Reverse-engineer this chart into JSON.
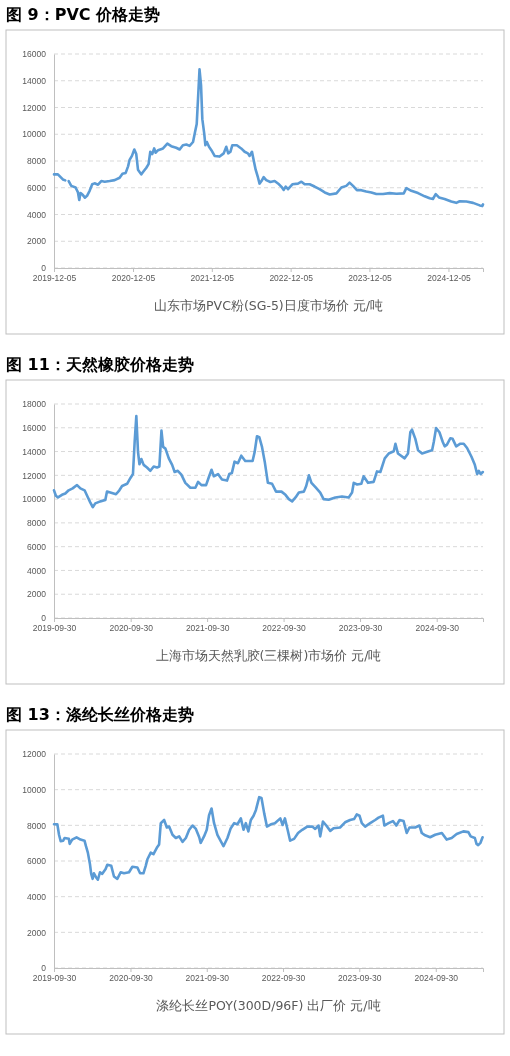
{
  "chart_data": [
    {
      "type": "line",
      "title": "图 9：PVC 价格走势",
      "xlabel": "山东市场PVC粉(SG-5)日度市场价 元/吨",
      "grid": "y",
      "xlim": [
        "2019-12-05",
        "2025-05-14"
      ],
      "ylim": [
        0,
        16000
      ],
      "yticks": [
        0,
        2000,
        4000,
        6000,
        8000,
        10000,
        12000,
        14000,
        16000
      ],
      "xticks": [
        "2019-12-05",
        "2020-12-05",
        "2021-12-05",
        "2022-12-05",
        "2023-12-05",
        "2024-12-05"
      ],
      "x": [
        "2019-12-05",
        "2019-12-23",
        "2020-01-15",
        "2020-01-26",
        "2020-02-03",
        "2020-02-11",
        "2020-02-23",
        "2020-03-14",
        "2020-03-25",
        "2020-03-31",
        "2020-04-06",
        "2020-04-17",
        "2020-04-26",
        "2020-05-06",
        "2020-05-18",
        "2020-05-30",
        "2020-06-10",
        "2020-06-26",
        "2020-07-11",
        "2020-07-27",
        "2020-08-19",
        "2020-09-11",
        "2020-10-04",
        "2020-10-17",
        "2020-11-01",
        "2020-11-12",
        "2020-11-19",
        "2020-11-30",
        "2020-12-11",
        "2020-12-20",
        "2020-12-28",
        "2021-01-12",
        "2021-01-23",
        "2021-02-04",
        "2021-02-15",
        "2021-02-23",
        "2021-03-04",
        "2021-03-13",
        "2021-03-20",
        "2021-03-31",
        "2021-04-23",
        "2021-05-13",
        "2021-05-31",
        "2021-06-23",
        "2021-07-09",
        "2021-07-24",
        "2021-08-09",
        "2021-08-24",
        "2021-09-09",
        "2021-09-18",
        "2021-09-26",
        "2021-10-03",
        "2021-10-09",
        "2021-10-16",
        "2021-10-22",
        "2021-10-31",
        "2021-11-05",
        "2021-11-12",
        "2021-11-22",
        "2021-12-03",
        "2021-12-18",
        "2022-01-10",
        "2022-01-29",
        "2022-02-10",
        "2022-02-19",
        "2022-03-01",
        "2022-03-10",
        "2022-03-31",
        "2022-04-20",
        "2022-05-06",
        "2022-05-21",
        "2022-05-29",
        "2022-06-09",
        "2022-06-18",
        "2022-06-26",
        "2022-07-07",
        "2022-07-14",
        "2022-07-23",
        "2022-08-02",
        "2022-08-14",
        "2022-09-02",
        "2022-09-22",
        "2022-10-12",
        "2022-10-26",
        "2022-11-03",
        "2022-11-12",
        "2022-11-23",
        "2022-12-13",
        "2023-01-08",
        "2023-01-24",
        "2023-02-08",
        "2023-03-03",
        "2023-03-26",
        "2023-04-18",
        "2023-05-12",
        "2023-06-04",
        "2023-07-05",
        "2023-07-28",
        "2023-08-20",
        "2023-09-04",
        "2023-09-20",
        "2023-10-08",
        "2023-10-28",
        "2023-11-20",
        "2023-12-14",
        "2024-01-06",
        "2024-02-06",
        "2024-03-08",
        "2024-04-08",
        "2024-05-12",
        "2024-05-24",
        "2024-06-16",
        "2024-07-17",
        "2024-08-17",
        "2024-09-09",
        "2024-09-24",
        "2024-10-07",
        "2024-10-22",
        "2024-11-17",
        "2024-12-18",
        "2025-01-10",
        "2025-01-26",
        "2025-02-26",
        "2025-03-29",
        "2025-04-29",
        "2025-05-11",
        "2025-05-14"
      ],
      "series": [
        {
          "color": "#5b9bd5",
          "values": [
            7000,
            7000,
            6620,
            6550,
            null,
            6500,
            6140,
            6020,
            5650,
            5090,
            5600,
            5450,
            5260,
            5400,
            5770,
            6260,
            6330,
            6230,
            6500,
            6450,
            6500,
            6570,
            6750,
            7040,
            7110,
            7600,
            8080,
            8380,
            8860,
            8520,
            7350,
            7000,
            7230,
            7480,
            7770,
            8690,
            8520,
            8940,
            8620,
            8810,
            8940,
            9300,
            9110,
            8990,
            8860,
            9180,
            9230,
            9130,
            9420,
            10150,
            10760,
            12950,
            14850,
            13680,
            11130,
            10030,
            9180,
            9420,
            9060,
            8810,
            8380,
            8330,
            8570,
            9060,
            8570,
            8690,
            9180,
            9180,
            8940,
            8690,
            8570,
            8380,
            8690,
            7960,
            7350,
            6750,
            6310,
            6500,
            6790,
            6570,
            6430,
            6500,
            6260,
            6020,
            5840,
            6090,
            5890,
            6260,
            6310,
            6450,
            6260,
            6260,
            6090,
            5890,
            5650,
            5500,
            5580,
            6020,
            6140,
            6380,
            6140,
            5820,
            5820,
            5720,
            5650,
            5530,
            5530,
            5600,
            5550,
            5580,
            5970,
            5770,
            5600,
            5360,
            5210,
            5160,
            5530,
            5280,
            5160,
            4970,
            4870,
            4990,
            4970,
            4870,
            4680,
            4630,
            4750
          ]
        }
      ]
    },
    {
      "type": "line",
      "title": "图 11：天然橡胶价格走势",
      "xlabel": "上海市场天然乳胶(三棵树)市场价 元/吨",
      "grid": "y",
      "xlim": [
        "2019-09-30",
        "2025-05-09"
      ],
      "ylim": [
        0,
        18000
      ],
      "yticks": [
        0,
        2000,
        4000,
        6000,
        8000,
        10000,
        12000,
        14000,
        16000,
        18000
      ],
      "xticks": [
        "2019-09-30",
        "2020-09-30",
        "2021-09-30",
        "2022-09-30",
        "2023-09-30",
        "2024-09-30"
      ],
      "x": [
        "2019-09-30",
        "2019-10-09",
        "2019-10-19",
        "2019-11-07",
        "2019-11-23",
        "2019-12-09",
        "2019-12-28",
        "2020-01-18",
        "2020-02-03",
        "2020-02-23",
        "2020-03-10",
        "2020-03-21",
        "2020-04-02",
        "2020-04-14",
        "2020-05-08",
        "2020-06-01",
        "2020-06-09",
        "2020-06-25",
        "2020-07-22",
        "2020-08-07",
        "2020-08-20",
        "2020-09-13",
        "2020-09-29",
        "2020-10-11",
        "2020-10-19",
        "2020-10-27",
        "2020-11-04",
        "2020-11-11",
        "2020-11-20",
        "2020-12-01",
        "2020-12-17",
        "2021-01-02",
        "2021-01-18",
        "2021-02-03",
        "2021-02-14",
        "2021-02-24",
        "2021-03-04",
        "2021-03-15",
        "2021-03-31",
        "2021-04-16",
        "2021-04-28",
        "2021-05-13",
        "2021-05-30",
        "2021-06-18",
        "2021-07-12",
        "2021-08-05",
        "2021-08-18",
        "2021-09-03",
        "2021-09-25",
        "2021-10-08",
        "2021-10-21",
        "2021-11-01",
        "2021-11-21",
        "2021-12-10",
        "2022-01-03",
        "2022-01-14",
        "2022-01-26",
        "2022-02-08",
        "2022-02-24",
        "2022-03-12",
        "2022-03-31",
        "2022-05-05",
        "2022-05-15",
        "2022-05-26",
        "2022-06-06",
        "2022-06-19",
        "2022-07-02",
        "2022-07-17",
        "2022-08-06",
        "2022-08-25",
        "2022-09-20",
        "2022-10-09",
        "2022-10-25",
        "2022-11-10",
        "2022-11-26",
        "2022-12-12",
        "2023-01-05",
        "2023-01-16",
        "2023-01-29",
        "2023-02-10",
        "2023-03-01",
        "2023-03-24",
        "2023-04-09",
        "2023-05-03",
        "2023-06-04",
        "2023-07-06",
        "2023-08-07",
        "2023-08-23",
        "2023-08-31",
        "2023-09-16",
        "2023-10-06",
        "2023-10-17",
        "2023-11-07",
        "2023-12-04",
        "2023-12-20",
        "2024-01-05",
        "2024-01-26",
        "2024-02-14",
        "2024-03-09",
        "2024-03-17",
        "2024-03-29",
        "2024-04-30",
        "2024-05-16",
        "2024-05-27",
        "2024-06-04",
        "2024-06-20",
        "2024-07-03",
        "2024-07-22",
        "2024-08-23",
        "2024-09-08",
        "2024-09-16",
        "2024-09-27",
        "2024-10-13",
        "2024-10-29",
        "2024-11-07",
        "2024-11-18",
        "2024-12-04",
        "2024-12-15",
        "2025-01-01",
        "2025-01-21",
        "2025-02-06",
        "2025-02-22",
        "2025-03-15",
        "2025-03-31",
        "2025-04-11",
        "2025-04-19",
        "2025-04-28",
        "2025-05-08"
      ],
      "series": [
        {
          "color": "#5b9bd5",
          "values": [
            10740,
            10280,
            10140,
            10360,
            10470,
            10740,
            10900,
            11180,
            10900,
            10740,
            10140,
            9730,
            9320,
            9640,
            9810,
            9920,
            10630,
            10550,
            10410,
            10740,
            11100,
            11290,
            11780,
            12110,
            14800,
            16990,
            13970,
            12930,
            13370,
            12880,
            12660,
            12380,
            12740,
            12660,
            12740,
            15760,
            14390,
            14250,
            13430,
            12880,
            12280,
            12380,
            12060,
            11370,
            10960,
            10960,
            11450,
            11180,
            11180,
            11840,
            12470,
            11920,
            12110,
            11650,
            11560,
            12110,
            12190,
            13150,
            13020,
            13650,
            13210,
            13210,
            13970,
            15290,
            15210,
            14390,
            13150,
            11370,
            11290,
            10630,
            10630,
            10360,
            10000,
            9810,
            10140,
            10550,
            10630,
            11100,
            12000,
            11370,
            11010,
            10550,
            10000,
            9950,
            10140,
            10220,
            10140,
            10550,
            11370,
            11230,
            11290,
            11920,
            11370,
            11450,
            12330,
            12280,
            13430,
            13840,
            14030,
            14660,
            13840,
            13430,
            13840,
            15620,
            15840,
            15070,
            14110,
            13840,
            14030,
            14110,
            14800,
            15970,
            15620,
            14800,
            14440,
            14580,
            15120,
            15070,
            14440,
            14660,
            14660,
            14300,
            13560,
            12880,
            12110,
            12380,
            12110,
            12280
          ]
        }
      ]
    },
    {
      "type": "line",
      "title": "图 13：涤纶长丝价格走势",
      "xlabel": "涤纶长丝POY(300D/96F) 出厂价 元/吨",
      "grid": "y",
      "xlim": [
        "2019-09-30",
        "2025-05-14"
      ],
      "ylim": [
        0,
        12000
      ],
      "yticks": [
        0,
        2000,
        4000,
        6000,
        8000,
        10000,
        12000
      ],
      "xticks": [
        "2019-09-30",
        "2020-09-30",
        "2021-09-30",
        "2022-09-30",
        "2023-09-30",
        "2024-09-30"
      ],
      "x": [
        "2019-09-30",
        "2019-10-16",
        "2019-10-24",
        "2019-11-01",
        "2019-11-13",
        "2019-11-20",
        "2019-12-10",
        "2019-12-14",
        "2019-12-26",
        "2020-01-16",
        "2020-02-04",
        "2020-02-23",
        "2020-03-01",
        "2020-03-10",
        "2020-03-20",
        "2020-03-26",
        "2020-04-02",
        "2020-04-08",
        "2020-04-18",
        "2020-04-27",
        "2020-05-07",
        "2020-05-18",
        "2020-06-03",
        "2020-06-11",
        "2020-06-30",
        "2020-07-13",
        "2020-07-29",
        "2020-08-14",
        "2020-08-30",
        "2020-09-23",
        "2020-10-09",
        "2020-11-02",
        "2020-11-15",
        "2020-12-01",
        "2020-12-12",
        "2020-12-20",
        "2021-01-05",
        "2021-01-18",
        "2021-02-03",
        "2021-02-14",
        "2021-02-22",
        "2021-03-10",
        "2021-03-23",
        "2021-04-03",
        "2021-04-19",
        "2021-05-05",
        "2021-05-21",
        "2021-06-06",
        "2021-06-22",
        "2021-07-08",
        "2021-07-24",
        "2021-08-09",
        "2021-08-25",
        "2021-09-01",
        "2021-09-17",
        "2021-09-30",
        "2021-10-11",
        "2021-10-23",
        "2021-11-04",
        "2021-11-20",
        "2021-12-06",
        "2021-12-19",
        "2022-01-07",
        "2022-01-23",
        "2022-02-08",
        "2022-02-24",
        "2022-03-12",
        "2022-03-25",
        "2022-04-05",
        "2022-04-17",
        "2022-04-29",
        "2022-05-12",
        "2022-05-23",
        "2022-06-08",
        "2022-06-19",
        "2022-07-02",
        "2022-07-15",
        "2022-08-03",
        "2022-08-22",
        "2022-09-17",
        "2022-09-28",
        "2022-10-09",
        "2022-10-22",
        "2022-11-03",
        "2022-11-22",
        "2022-12-11",
        "2022-12-31",
        "2023-01-24",
        "2023-02-17",
        "2023-03-03",
        "2023-03-19",
        "2023-03-27",
        "2023-04-09",
        "2023-04-25",
        "2023-05-14",
        "2023-05-30",
        "2023-06-30",
        "2023-07-24",
        "2023-08-17",
        "2023-09-05",
        "2023-09-18",
        "2023-10-01",
        "2023-10-12",
        "2023-10-28",
        "2023-11-21",
        "2023-12-15",
        "2023-12-31",
        "2024-01-21",
        "2024-01-28",
        "2024-02-17",
        "2024-03-09",
        "2024-03-25",
        "2024-04-10",
        "2024-04-29",
        "2024-05-14",
        "2024-05-27",
        "2024-06-23",
        "2024-07-14",
        "2024-07-25",
        "2024-08-10",
        "2024-09-03",
        "2024-09-27",
        "2024-10-29",
        "2024-11-21",
        "2024-12-15",
        "2025-01-08",
        "2025-02-09",
        "2025-03-05",
        "2025-03-16",
        "2025-04-05",
        "2025-04-13",
        "2025-04-21",
        "2025-05-02",
        "2025-05-12"
      ],
      "series": [
        {
          "color": "#5b9bd5",
          "values": [
            8060,
            8060,
            7470,
            7110,
            7140,
            7290,
            7250,
            6960,
            7200,
            7330,
            7200,
            7140,
            6830,
            6470,
            5830,
            5280,
            5000,
            5310,
            5090,
            4950,
            5370,
            5280,
            5550,
            5790,
            5730,
            5130,
            5000,
            5370,
            5310,
            5370,
            5680,
            5640,
            5310,
            5310,
            5730,
            6100,
            6470,
            6380,
            6740,
            6930,
            8120,
            8300,
            7880,
            7930,
            7470,
            7290,
            7380,
            7070,
            7290,
            7750,
            7990,
            7800,
            7330,
            7020,
            7380,
            7750,
            8570,
            8940,
            8120,
            7470,
            7110,
            6830,
            7290,
            7840,
            8120,
            8060,
            8390,
            7750,
            8120,
            7660,
            8300,
            8540,
            8850,
            9580,
            9530,
            8670,
            7930,
            8060,
            8120,
            8390,
            8020,
            8390,
            7750,
            7140,
            7240,
            7570,
            7750,
            7930,
            7930,
            7800,
            7990,
            7380,
            8210,
            7990,
            7690,
            7840,
            7880,
            8170,
            8300,
            8350,
            8610,
            8540,
            8120,
            7930,
            8120,
            8300,
            8430,
            8540,
            7990,
            8120,
            8240,
            7990,
            8300,
            8240,
            7570,
            7880,
            7880,
            7990,
            7570,
            7440,
            7330,
            7470,
            7570,
            7200,
            7290,
            7510,
            7660,
            7620,
            7380,
            7290,
            6960,
            6890,
            7020,
            7330
          ]
        }
      ]
    }
  ]
}
